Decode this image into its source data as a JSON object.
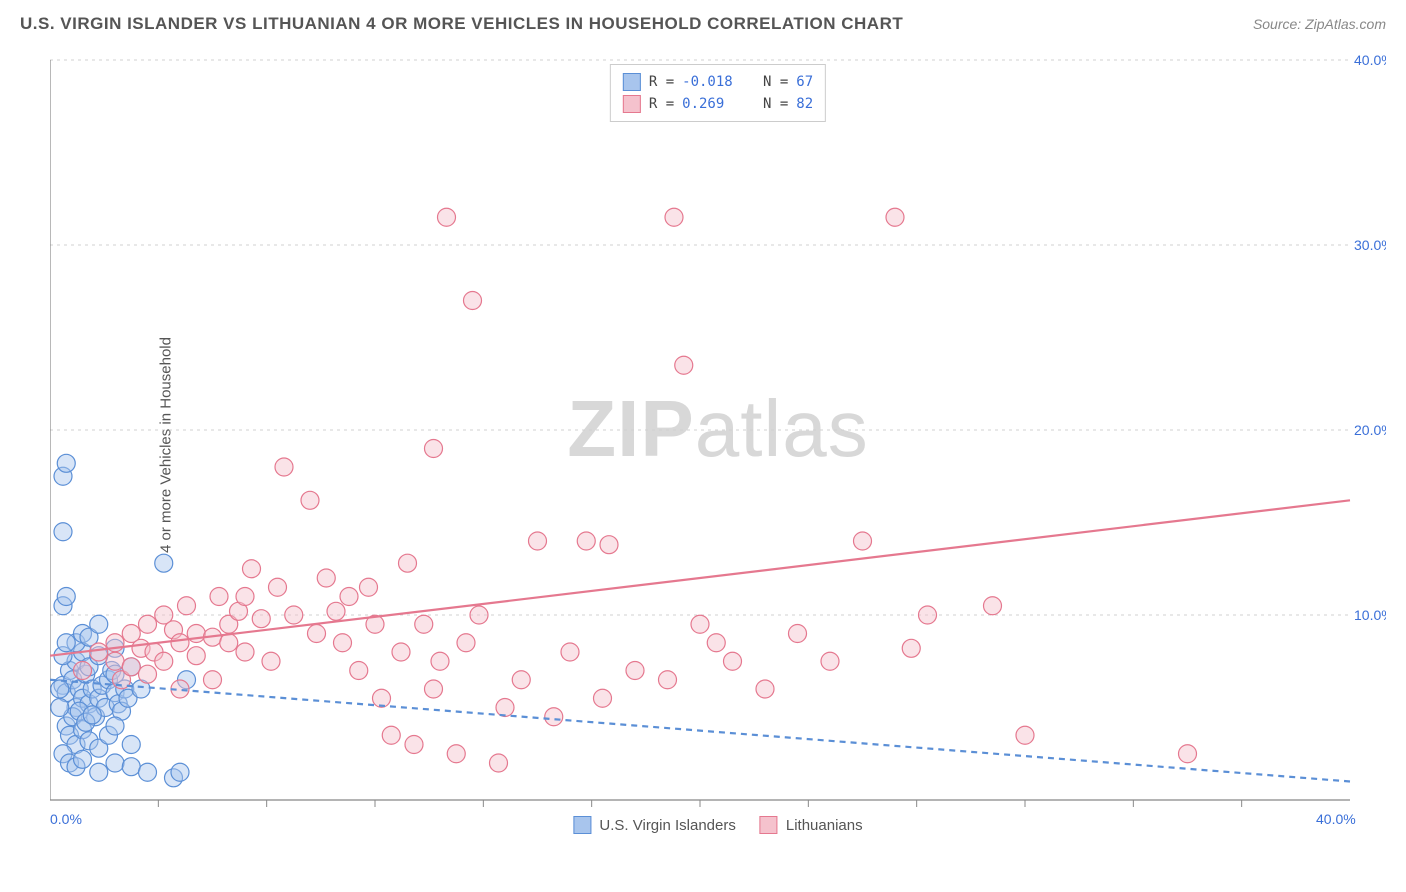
{
  "title": "U.S. VIRGIN ISLANDER VS LITHUANIAN 4 OR MORE VEHICLES IN HOUSEHOLD CORRELATION CHART",
  "source": "Source: ZipAtlas.com",
  "ylabel": "4 or more Vehicles in Household",
  "watermark_zip": "ZIP",
  "watermark_atlas": "atlas",
  "chart": {
    "type": "scatter",
    "xlim": [
      0,
      40
    ],
    "ylim": [
      0,
      40
    ],
    "xtick_step": 10,
    "ytick_step": 10,
    "xtick_labels": [
      "0.0%",
      "40.0%"
    ],
    "ytick_labels": [
      "10.0%",
      "20.0%",
      "30.0%",
      "40.0%"
    ],
    "background_color": "#ffffff",
    "grid_color": "#d0d0d0",
    "axis_color": "#888888",
    "tick_color": "#888888",
    "label_color": "#3a6fd8",
    "marker_radius": 9,
    "marker_opacity": 0.45,
    "marker_stroke_width": 1.2,
    "line_width": 2.2,
    "dash_pattern": "6,5"
  },
  "series": [
    {
      "name": "U.S. Virgin Islanders",
      "color_fill": "#a8c5ed",
      "color_stroke": "#5b8fd6",
      "r": -0.018,
      "n": 67,
      "trend": {
        "x1": 0,
        "y1": 6.5,
        "x2": 40,
        "y2": 1.0,
        "dashed": true
      },
      "points": [
        [
          0.4,
          6.2
        ],
        [
          0.5,
          5.8
        ],
        [
          0.6,
          7.0
        ],
        [
          0.7,
          6.5
        ],
        [
          0.8,
          5.0
        ],
        [
          0.8,
          7.5
        ],
        [
          0.9,
          6.0
        ],
        [
          1.0,
          5.5
        ],
        [
          1.0,
          8.0
        ],
        [
          1.1,
          6.8
        ],
        [
          1.2,
          7.2
        ],
        [
          1.2,
          5.2
        ],
        [
          1.3,
          6.0
        ],
        [
          1.4,
          4.5
        ],
        [
          1.5,
          7.8
        ],
        [
          1.5,
          5.5
        ],
        [
          1.6,
          6.2
        ],
        [
          1.7,
          5.0
        ],
        [
          1.8,
          6.5
        ],
        [
          1.9,
          7.0
        ],
        [
          2.0,
          5.8
        ],
        [
          2.0,
          6.8
        ],
        [
          2.1,
          5.2
        ],
        [
          2.2,
          4.8
        ],
        [
          2.3,
          6.0
        ],
        [
          2.4,
          5.5
        ],
        [
          2.5,
          7.2
        ],
        [
          0.5,
          4.0
        ],
        [
          0.6,
          3.5
        ],
        [
          0.7,
          4.5
        ],
        [
          0.8,
          3.0
        ],
        [
          0.9,
          4.8
        ],
        [
          1.0,
          3.8
        ],
        [
          1.1,
          4.2
        ],
        [
          1.2,
          3.2
        ],
        [
          1.3,
          4.6
        ],
        [
          1.5,
          2.8
        ],
        [
          1.8,
          3.5
        ],
        [
          2.0,
          4.0
        ],
        [
          2.5,
          3.0
        ],
        [
          0.4,
          2.5
        ],
        [
          0.6,
          2.0
        ],
        [
          0.8,
          1.8
        ],
        [
          1.0,
          2.2
        ],
        [
          1.5,
          1.5
        ],
        [
          2.0,
          2.0
        ],
        [
          2.5,
          1.8
        ],
        [
          3.0,
          1.5
        ],
        [
          0.4,
          10.5
        ],
        [
          0.5,
          11.0
        ],
        [
          0.4,
          14.5
        ],
        [
          0.4,
          17.5
        ],
        [
          0.5,
          18.2
        ],
        [
          0.8,
          8.5
        ],
        [
          1.0,
          9.0
        ],
        [
          1.2,
          8.8
        ],
        [
          1.5,
          9.5
        ],
        [
          2.0,
          8.2
        ],
        [
          2.8,
          6.0
        ],
        [
          3.5,
          12.8
        ],
        [
          3.8,
          1.2
        ],
        [
          4.0,
          1.5
        ],
        [
          4.2,
          6.5
        ],
        [
          0.3,
          6.0
        ],
        [
          0.3,
          5.0
        ],
        [
          0.4,
          7.8
        ],
        [
          0.5,
          8.5
        ]
      ]
    },
    {
      "name": "Lithuanians",
      "color_fill": "#f5c2cd",
      "color_stroke": "#e5788f",
      "r": 0.269,
      "n": 82,
      "trend": {
        "x1": 0,
        "y1": 7.8,
        "x2": 40,
        "y2": 16.2,
        "dashed": false
      },
      "points": [
        [
          1.0,
          7.0
        ],
        [
          1.5,
          8.0
        ],
        [
          2.0,
          7.5
        ],
        [
          2.0,
          8.5
        ],
        [
          2.5,
          9.0
        ],
        [
          2.8,
          8.2
        ],
        [
          3.0,
          9.5
        ],
        [
          3.2,
          8.0
        ],
        [
          3.5,
          10.0
        ],
        [
          3.8,
          9.2
        ],
        [
          4.0,
          8.5
        ],
        [
          4.2,
          10.5
        ],
        [
          4.5,
          9.0
        ],
        [
          5.0,
          8.8
        ],
        [
          5.2,
          11.0
        ],
        [
          5.5,
          9.5
        ],
        [
          5.8,
          10.2
        ],
        [
          6.0,
          8.0
        ],
        [
          6.2,
          12.5
        ],
        [
          6.5,
          9.8
        ],
        [
          6.8,
          7.5
        ],
        [
          7.0,
          11.5
        ],
        [
          7.2,
          18.0
        ],
        [
          7.5,
          10.0
        ],
        [
          8.0,
          16.2
        ],
        [
          8.2,
          9.0
        ],
        [
          8.5,
          12.0
        ],
        [
          9.0,
          8.5
        ],
        [
          9.2,
          11.0
        ],
        [
          9.5,
          7.0
        ],
        [
          10.0,
          9.5
        ],
        [
          10.2,
          5.5
        ],
        [
          10.5,
          3.5
        ],
        [
          10.8,
          8.0
        ],
        [
          11.0,
          12.8
        ],
        [
          11.2,
          3.0
        ],
        [
          11.5,
          9.5
        ],
        [
          11.8,
          19.0
        ],
        [
          12.0,
          7.5
        ],
        [
          12.2,
          31.5
        ],
        [
          12.5,
          2.5
        ],
        [
          12.8,
          8.5
        ],
        [
          13.0,
          27.0
        ],
        [
          13.2,
          10.0
        ],
        [
          13.8,
          2.0
        ],
        [
          14.0,
          5.0
        ],
        [
          14.5,
          6.5
        ],
        [
          15.0,
          14.0
        ],
        [
          15.5,
          4.5
        ],
        [
          16.0,
          8.0
        ],
        [
          16.5,
          14.0
        ],
        [
          17.0,
          5.5
        ],
        [
          17.2,
          13.8
        ],
        [
          18.0,
          7.0
        ],
        [
          19.0,
          6.5
        ],
        [
          19.2,
          31.5
        ],
        [
          19.5,
          23.5
        ],
        [
          20.0,
          9.5
        ],
        [
          20.5,
          8.5
        ],
        [
          21.0,
          7.5
        ],
        [
          22.0,
          6.0
        ],
        [
          23.0,
          9.0
        ],
        [
          24.0,
          7.5
        ],
        [
          25.0,
          14.0
        ],
        [
          26.0,
          31.5
        ],
        [
          26.5,
          8.2
        ],
        [
          27.0,
          10.0
        ],
        [
          29.0,
          10.5
        ],
        [
          30.0,
          3.5
        ],
        [
          35.0,
          2.5
        ],
        [
          2.2,
          6.5
        ],
        [
          2.5,
          7.2
        ],
        [
          3.0,
          6.8
        ],
        [
          3.5,
          7.5
        ],
        [
          4.0,
          6.0
        ],
        [
          4.5,
          7.8
        ],
        [
          5.0,
          6.5
        ],
        [
          5.5,
          8.5
        ],
        [
          6.0,
          11.0
        ],
        [
          8.8,
          10.2
        ],
        [
          9.8,
          11.5
        ],
        [
          11.8,
          6.0
        ]
      ]
    }
  ],
  "legend_top": {
    "r_label": "R =",
    "n_label": "N ="
  },
  "legend_bottom": {
    "series_labels": [
      "U.S. Virgin Islanders",
      "Lithuanians"
    ]
  }
}
